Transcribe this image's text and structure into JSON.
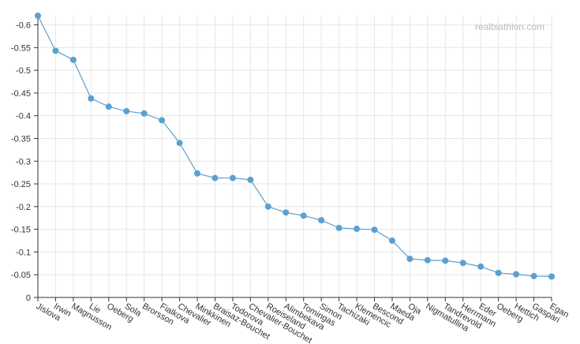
{
  "watermark": "realbiathlon.com",
  "chart_data": {
    "type": "line",
    "title": "",
    "xlabel": "",
    "ylabel": "",
    "categories": [
      "Jislova",
      "Irwin",
      "Magnusson",
      "Lie",
      "Oeberg",
      "Sola",
      "Brorsson",
      "Fialkova",
      "Chevalier",
      "Minkkinen",
      "Braisaz-Bouchet",
      "Todorova",
      "Chevalier-Bouchet",
      "Roeiseland",
      "Alimbekava",
      "Tomingas",
      "Simon",
      "Tachizaki",
      "Klemencic",
      "Bescond",
      "Maeda",
      "Oja",
      "Nigmatullina",
      "Tandrevold",
      "Herrmann",
      "Eder",
      "Oeberg",
      "Hettich",
      "Gaspari",
      "Egan"
    ],
    "values": [
      -0.62,
      -0.543,
      -0.523,
      -0.438,
      -0.42,
      -0.41,
      -0.405,
      -0.39,
      -0.34,
      -0.273,
      -0.263,
      -0.263,
      -0.259,
      -0.2,
      -0.187,
      -0.18,
      -0.17,
      -0.153,
      -0.151,
      -0.149,
      -0.125,
      -0.085,
      -0.082,
      -0.081,
      -0.076,
      -0.068,
      -0.054,
      -0.051,
      -0.047,
      -0.046
    ],
    "ylim": [
      0,
      -0.62
    ],
    "yticks": [
      0,
      -0.05,
      -0.1,
      -0.15,
      -0.2,
      -0.25,
      -0.3,
      -0.35,
      -0.4,
      -0.45,
      -0.5,
      -0.55,
      -0.6
    ],
    "ytick_labels": [
      "0",
      "-0.05",
      "-0.1",
      "-0.15",
      "-0.2",
      "-0.25",
      "-0.3",
      "-0.35",
      "-0.4",
      "-0.45",
      "-0.5",
      "-0.55",
      "-0.6"
    ],
    "grid": true,
    "color": "#5b9fcf",
    "point_color": "#5ba0d0"
  }
}
